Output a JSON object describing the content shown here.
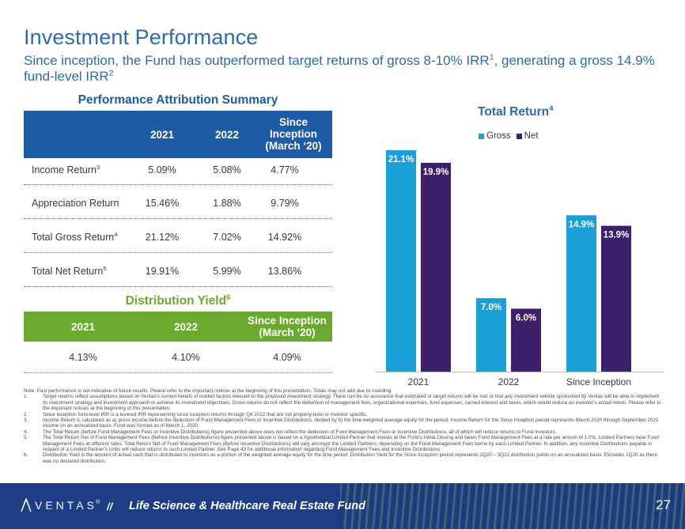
{
  "header": {
    "title": "Investment Performance",
    "subtitle_a": "Since inception, the Fund has outperformed target returns of gross 8-10% IRR",
    "subtitle_sup1": "1",
    "subtitle_b": ", generating a gross 14.9% fund-level IRR",
    "subtitle_sup2": "2"
  },
  "attribution": {
    "title": "Performance Attribution Summary",
    "columns": [
      "2021",
      "2022",
      "Since Inception (March ‘20)"
    ],
    "col3_line1": "Since",
    "col3_line2": "Inception",
    "col3_line3": "(March ‘20)",
    "rows": [
      {
        "label": "Income Return",
        "sup": "3",
        "values": [
          "5.09%",
          "5.08%",
          "4.77%"
        ]
      },
      {
        "label": "Appreciation Return",
        "sup": "",
        "values": [
          "15.46%",
          "1.88%",
          "9.79%"
        ]
      },
      {
        "label": "Total Gross Return",
        "sup": "4",
        "values": [
          "21.12%",
          "7.02%",
          "14.92%"
        ]
      },
      {
        "label": "Total Net Return",
        "sup": "5",
        "values": [
          "19.91%",
          "5.99%",
          "13.86%"
        ]
      }
    ]
  },
  "distribution": {
    "title": "Distribution Yield",
    "title_sup": "6",
    "columns": [
      "2021",
      "2022",
      "Since Inception (March ‘20)"
    ],
    "col3_line1": "Since Inception",
    "col3_line2": "(March ‘20)",
    "values": [
      "4.13%",
      "4.10%",
      "4.09%"
    ]
  },
  "chart_data": {
    "type": "bar",
    "title": "Total Return",
    "title_sup": "4",
    "categories": [
      "2021",
      "2022",
      "Since Inception"
    ],
    "series": [
      {
        "name": "Gross",
        "values": [
          21.1,
          7.0,
          14.9
        ],
        "labels": [
          "21.1%",
          "7.0%",
          "14.9%"
        ],
        "color": "#1a9fd9"
      },
      {
        "name": "Net",
        "values": [
          19.9,
          6.0,
          13.9
        ],
        "labels": [
          "19.9%",
          "6.0%",
          "13.9%"
        ],
        "color": "#3d1f6b"
      }
    ],
    "ylim": [
      0,
      21.1
    ],
    "grid": false,
    "legend": "top-left"
  },
  "notes": {
    "intro": "Note: Past performance is not indicative of future results. Please refer to the important notices at the beginning of this presentation. Totals may not add due to rounding.",
    "items": [
      {
        "n": "1.",
        "text": "Target returns reflect assumptions based on Ventas’s current beliefs of market factors relevant to the proposed investment strategy. There can be no assurance that estimated or target returns will be met or that any investment vehicle sponsored by Ventas will be able to implement its investment strategy and investment approach or achieve its investment objectives. Gross returns do not reflect the deduction of management fees, organizational expenses, fund expenses, carried interest and taxes, which would reduce an investor’s actual return. Please refer to the important notices at the beginning of this presentation."
      },
      {
        "n": "2.",
        "text": "Since inception fund-level IRR is a levered IRR representing since inception returns through Q4 2022 that are not property-level or investor specific."
      },
      {
        "n": "3.",
        "text": "Income Return is calculated as a) gross income before the deduction of Fund Management Fees or Incentive Distributions, divided by b) the time weighted average equity for the period. Income Return for the Since Inception period represents March 2020 through September 2022 income on an annualized basis. Fund was formed as of March 1, 2020."
      },
      {
        "n": "4.",
        "text": "The Total Return (before Fund Management Fees or Incentive Distributions) figure presented above does not reflect the deduction of Fund Management Fees or Incentive Distributions, all of which will reduce returns to Fund Investors."
      },
      {
        "n": "5.",
        "text": "The Total Return Net of Fund Management Fees (Before Incentive Distributions) figure presented above is based on a hypothetical Limited Partner that invests at the Fund’s Initial Closing and bears Fund Management Fees at a rate per annum of 1.0%. Limited Partners bear Fund Management Fees at different rates. Total Return Net of Fund Management Fees (Before Incentive Distributions) will vary amongst the Limited Partners, depending on the Fund Management Fees borne by each Limited Partner. In addition, any Incentive Distributions payable in respect of a Limited Partner’s Units will reduce returns to such Limited Partner. See Page 43 for additional information regarding Fund Management Fees and Incentive Distributions."
      },
      {
        "n": "6.",
        "text": "Distribution Yield is the amount of actual cash that is distributed to investors as a portion of the weighted average equity for the time period. Distribution Yield for the Since Inception period represents 2Q20 – 3Q22 distribution yields on an annualized basis. Excludes 1Q20 as there was no declared distribution."
      }
    ]
  },
  "footer": {
    "brand": "VENTAS",
    "reg": "®",
    "separator": "//",
    "fund_name": "Life Science & Healthcare Real Estate Fund",
    "page": "27",
    "bg_color": "#1d3d86"
  }
}
